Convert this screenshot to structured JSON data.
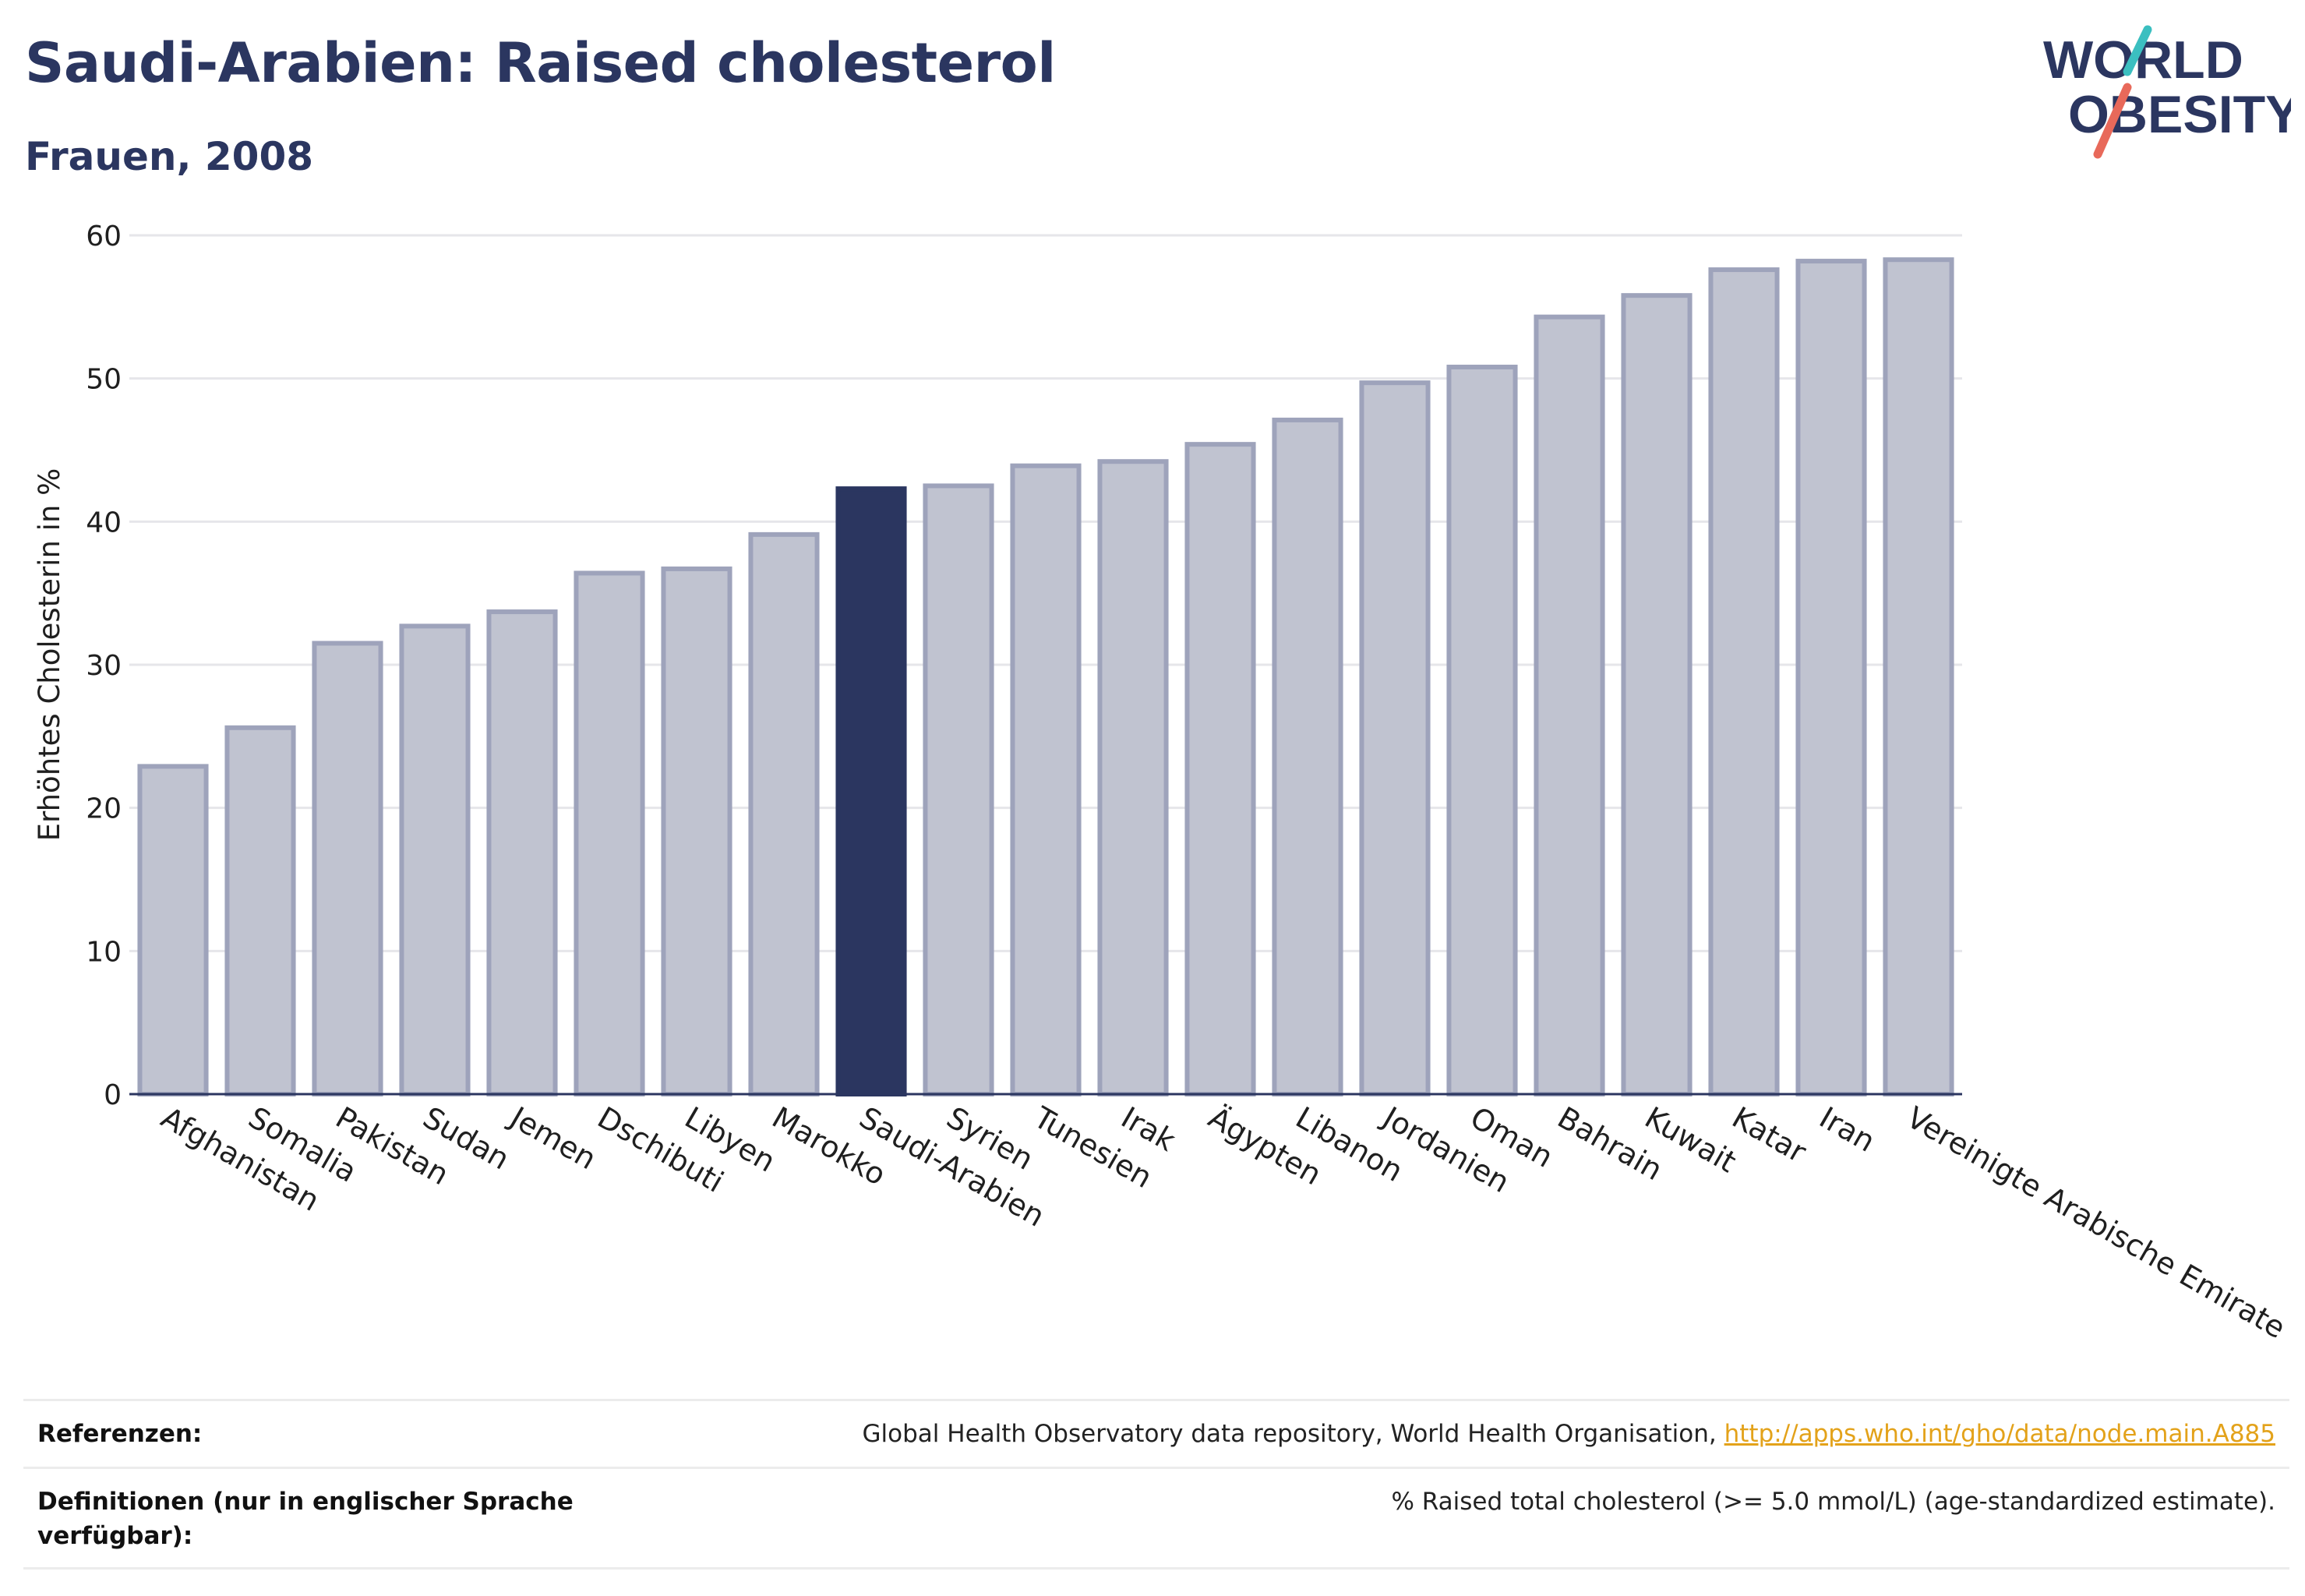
{
  "header": {
    "title": "Saudi-Arabien: Raised cholesterol",
    "subtitle": "Frauen, 2008"
  },
  "logo": {
    "line1": "WORLD",
    "line2": "OBESITY",
    "slash_colors": [
      "#3bbfc0",
      "#e8695a"
    ]
  },
  "chart_data": {
    "type": "bar",
    "ylabel": "Erhöhtes Cholesterin in %",
    "xlabel": "",
    "ylim": [
      0,
      60
    ],
    "yticks": [
      0,
      10,
      20,
      30,
      40,
      50,
      60
    ],
    "grid": true,
    "highlight": "Saudi-Arabien",
    "colors": {
      "bar": "#c0c3d0",
      "bar_border": "#9ea3bb",
      "highlight": "#2b3660",
      "axis": "#2b3660",
      "grid": "#e6e6ea"
    },
    "categories": [
      "Afghanistan",
      "Somalia",
      "Pakistan",
      "Sudan",
      "Jemen",
      "Dschibuti",
      "Libyen",
      "Marokko",
      "Saudi-Arabien",
      "Syrien",
      "Tunesien",
      "Irak",
      "Ägypten",
      "Libanon",
      "Jordanien",
      "Oman",
      "Bahrain",
      "Kuwait",
      "Katar",
      "Iran",
      "Vereinigte Arabische Emirate"
    ],
    "values": [
      22.9,
      25.6,
      31.5,
      32.7,
      33.7,
      36.4,
      36.7,
      39.1,
      42.3,
      42.5,
      43.9,
      44.2,
      45.4,
      47.1,
      49.7,
      50.8,
      54.3,
      55.8,
      57.6,
      58.2,
      58.3
    ]
  },
  "references": {
    "label": "Referenzen:",
    "text": "Global Health Observatory data repository, World Health Organisation, ",
    "link": "http://apps.who.int/gho/data/node.main.A885"
  },
  "definitions": {
    "label": "Definitionen (nur in englischer Sprache verfügbar):",
    "text": "% Raised total cholesterol (>= 5.0 mmol/L) (age-standardized estimate)."
  }
}
